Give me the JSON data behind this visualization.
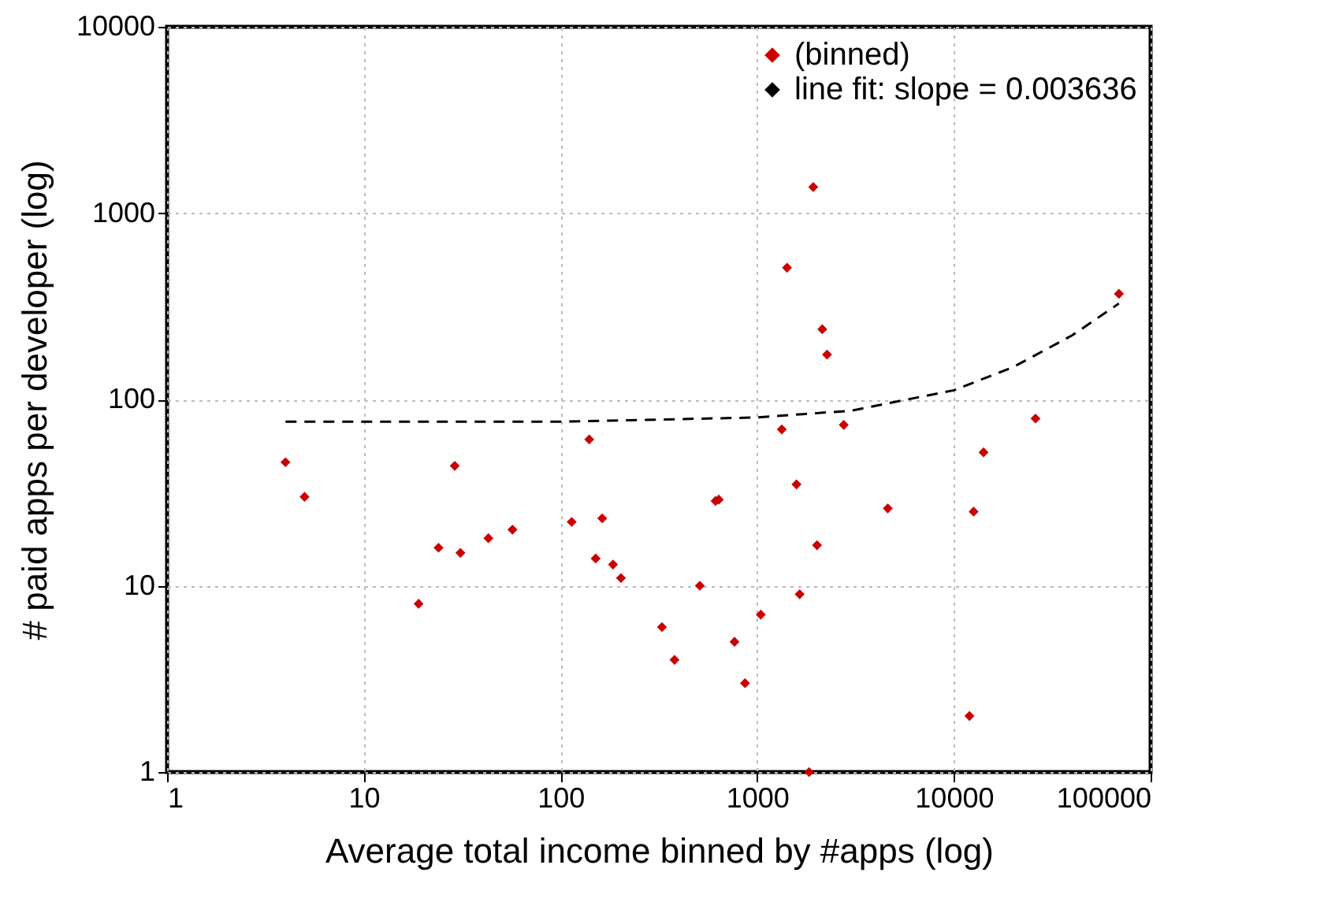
{
  "chart_data": {
    "type": "scatter",
    "xlabel": "Average total income binned by #apps (log)",
    "ylabel": "# paid apps per developer (log)",
    "log": "xy",
    "grid": true,
    "legend": "top right",
    "marker": "diamond",
    "xlim": [
      1,
      100000
    ],
    "xticks": [
      1,
      10,
      100,
      1000,
      10000,
      100000
    ],
    "ylim": [
      1,
      10000
    ],
    "yticks": [
      1,
      10,
      100,
      1000,
      10000
    ],
    "series": [
      {
        "name": "(binned)",
        "color": "#cc0000",
        "x": [
          4,
          5,
          19,
          24,
          29,
          31,
          43,
          57,
          114,
          140,
          151,
          163,
          185,
          203,
          328,
          380,
          511,
          614,
          638,
          767,
          867,
          1043,
          1334,
          1418,
          1584,
          1644,
          1836,
          1928,
          2014,
          2143,
          2266,
          2755,
          4615,
          12000,
          12600,
          14150,
          26000,
          69000
        ],
        "values": [
          46,
          30,
          8,
          16,
          44,
          15,
          18,
          20,
          22,
          61,
          14,
          23,
          13,
          11,
          6,
          4,
          10,
          28.5,
          29,
          5,
          3,
          7,
          69,
          509,
          35,
          9,
          1,
          1380,
          16.5,
          238,
          174,
          73,
          26,
          2,
          25,
          52,
          79,
          369
        ]
      },
      {
        "name": "line fit: slope = 0.003636",
        "type": "line",
        "color": "#000000",
        "line_style": "dashed",
        "marker": "none",
        "x": [
          4,
          100,
          1000,
          3000,
          10000,
          20000,
          40000,
          69000
        ],
        "values": [
          76,
          76,
          80,
          87,
          112,
          149,
          221,
          327
        ]
      }
    ]
  }
}
